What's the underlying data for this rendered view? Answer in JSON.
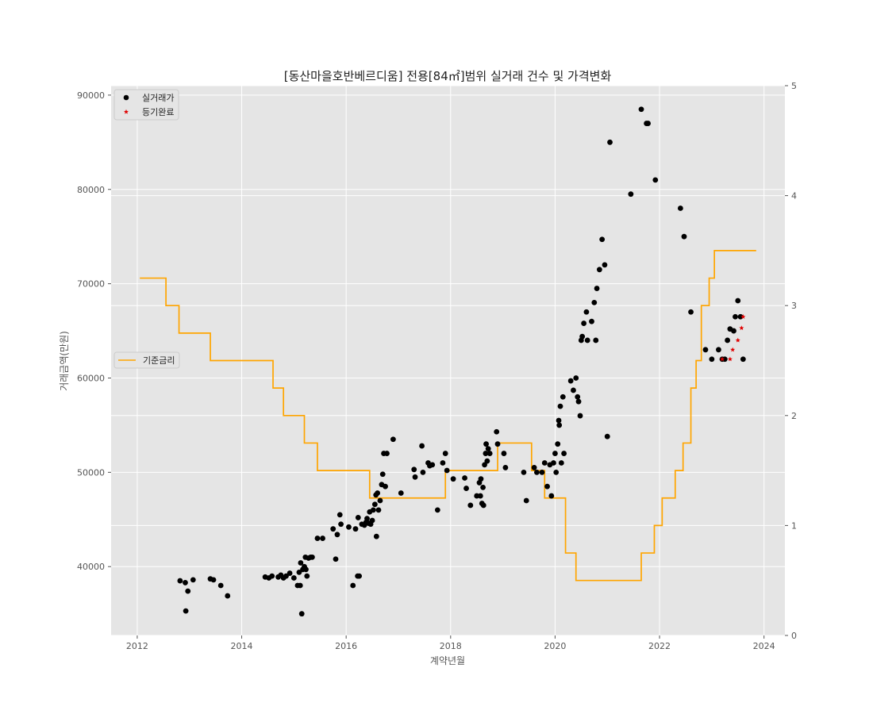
{
  "chart_data": {
    "type": "scatter",
    "title": "[동산마을호반베르디움] 전용[84㎡]범위 실거래 건수 및 가격변화",
    "xlabel": "계약년월",
    "ylabel": "거래금액(만원)",
    "xlim": [
      2011.5,
      2024.4
    ],
    "ylim": [
      32700,
      91000
    ],
    "y2lim": [
      0,
      5
    ],
    "x_ticks": [
      2012,
      2014,
      2016,
      2018,
      2020,
      2022,
      2024
    ],
    "y_ticks": [
      40000,
      50000,
      60000,
      70000,
      80000,
      90000
    ],
    "y2_ticks": [
      0,
      1,
      2,
      3,
      4,
      5
    ],
    "grid": true,
    "legend_placement": [
      "upper-left",
      "center-left"
    ],
    "colors": {
      "background": "#e5e5e5",
      "grid": "#ffffff",
      "trades": "#000000",
      "registered": "#e00000",
      "rate": "#ffa500"
    },
    "series": [
      {
        "name": "실거래가",
        "kind": "scatter",
        "marker": "circle",
        "points": [
          [
            2012.82,
            38500
          ],
          [
            2012.92,
            38300
          ],
          [
            2012.93,
            35300
          ],
          [
            2012.97,
            37400
          ],
          [
            2013.07,
            38600
          ],
          [
            2013.4,
            38700
          ],
          [
            2013.46,
            38600
          ],
          [
            2013.6,
            38000
          ],
          [
            2013.73,
            36900
          ],
          [
            2014.45,
            38900
          ],
          [
            2014.52,
            38800
          ],
          [
            2014.58,
            39000
          ],
          [
            2014.7,
            38900
          ],
          [
            2014.75,
            39100
          ],
          [
            2014.8,
            38800
          ],
          [
            2014.85,
            39000
          ],
          [
            2014.92,
            39300
          ],
          [
            2015.0,
            38800
          ],
          [
            2015.07,
            38000
          ],
          [
            2015.1,
            39400
          ],
          [
            2015.12,
            38000
          ],
          [
            2015.13,
            40400
          ],
          [
            2015.15,
            35000
          ],
          [
            2015.17,
            39700
          ],
          [
            2015.2,
            40000
          ],
          [
            2015.22,
            41000
          ],
          [
            2015.23,
            39700
          ],
          [
            2015.25,
            39000
          ],
          [
            2015.28,
            40900
          ],
          [
            2015.32,
            41000
          ],
          [
            2015.35,
            41000
          ],
          [
            2015.45,
            43000
          ],
          [
            2015.55,
            43000
          ],
          [
            2015.75,
            44000
          ],
          [
            2015.8,
            40800
          ],
          [
            2015.83,
            43400
          ],
          [
            2015.88,
            45500
          ],
          [
            2015.9,
            44500
          ],
          [
            2016.05,
            44200
          ],
          [
            2016.13,
            38000
          ],
          [
            2016.18,
            44000
          ],
          [
            2016.22,
            39000
          ],
          [
            2016.23,
            45200
          ],
          [
            2016.25,
            39000
          ],
          [
            2016.3,
            44500
          ],
          [
            2016.35,
            44400
          ],
          [
            2016.38,
            44700
          ],
          [
            2016.4,
            45100
          ],
          [
            2016.43,
            44600
          ],
          [
            2016.45,
            45800
          ],
          [
            2016.47,
            44500
          ],
          [
            2016.5,
            44900
          ],
          [
            2016.52,
            46000
          ],
          [
            2016.55,
            46600
          ],
          [
            2016.57,
            47600
          ],
          [
            2016.58,
            43200
          ],
          [
            2016.6,
            47800
          ],
          [
            2016.62,
            46000
          ],
          [
            2016.65,
            47000
          ],
          [
            2016.68,
            48700
          ],
          [
            2016.7,
            49800
          ],
          [
            2016.72,
            52000
          ],
          [
            2016.75,
            48500
          ],
          [
            2016.78,
            52000
          ],
          [
            2016.9,
            53500
          ],
          [
            2017.05,
            47800
          ],
          [
            2017.3,
            50300
          ],
          [
            2017.32,
            49500
          ],
          [
            2017.45,
            52800
          ],
          [
            2017.47,
            50000
          ],
          [
            2017.57,
            51000
          ],
          [
            2017.6,
            50700
          ],
          [
            2017.65,
            50800
          ],
          [
            2017.75,
            46000
          ],
          [
            2017.85,
            51000
          ],
          [
            2017.9,
            52000
          ],
          [
            2017.93,
            50200
          ],
          [
            2018.05,
            49300
          ],
          [
            2018.27,
            49400
          ],
          [
            2018.3,
            48300
          ],
          [
            2018.38,
            46500
          ],
          [
            2018.5,
            47500
          ],
          [
            2018.55,
            48900
          ],
          [
            2018.57,
            47500
          ],
          [
            2018.58,
            49300
          ],
          [
            2018.6,
            46700
          ],
          [
            2018.62,
            48400
          ],
          [
            2018.63,
            46500
          ],
          [
            2018.65,
            50800
          ],
          [
            2018.67,
            52000
          ],
          [
            2018.68,
            53000
          ],
          [
            2018.7,
            51200
          ],
          [
            2018.72,
            52500
          ],
          [
            2018.75,
            52000
          ],
          [
            2018.88,
            54300
          ],
          [
            2018.9,
            53000
          ],
          [
            2019.02,
            52000
          ],
          [
            2019.05,
            50500
          ],
          [
            2019.4,
            50000
          ],
          [
            2019.45,
            47000
          ],
          [
            2019.6,
            50500
          ],
          [
            2019.65,
            50000
          ],
          [
            2019.75,
            50000
          ],
          [
            2019.8,
            51000
          ],
          [
            2019.85,
            48500
          ],
          [
            2019.9,
            50800
          ],
          [
            2019.93,
            47500
          ],
          [
            2019.97,
            51000
          ],
          [
            2020.0,
            52000
          ],
          [
            2020.02,
            50000
          ],
          [
            2020.05,
            53000
          ],
          [
            2020.07,
            55500
          ],
          [
            2020.08,
            55000
          ],
          [
            2020.1,
            57000
          ],
          [
            2020.12,
            51000
          ],
          [
            2020.15,
            58000
          ],
          [
            2020.17,
            52000
          ],
          [
            2020.3,
            59700
          ],
          [
            2020.35,
            58700
          ],
          [
            2020.4,
            60000
          ],
          [
            2020.43,
            58000
          ],
          [
            2020.45,
            57500
          ],
          [
            2020.48,
            56000
          ],
          [
            2020.5,
            64000
          ],
          [
            2020.52,
            64400
          ],
          [
            2020.55,
            65800
          ],
          [
            2020.6,
            67000
          ],
          [
            2020.62,
            64000
          ],
          [
            2020.7,
            66000
          ],
          [
            2020.75,
            68000
          ],
          [
            2020.78,
            64000
          ],
          [
            2020.8,
            69500
          ],
          [
            2020.85,
            71500
          ],
          [
            2020.9,
            74700
          ],
          [
            2020.95,
            72000
          ],
          [
            2021.0,
            53800
          ],
          [
            2021.05,
            85000
          ],
          [
            2021.45,
            79500
          ],
          [
            2021.65,
            88500
          ],
          [
            2021.75,
            87000
          ],
          [
            2021.78,
            87000
          ],
          [
            2021.92,
            81000
          ],
          [
            2022.4,
            78000
          ],
          [
            2022.47,
            75000
          ],
          [
            2022.6,
            67000
          ],
          [
            2022.88,
            63000
          ],
          [
            2023.0,
            62000
          ],
          [
            2023.13,
            63000
          ],
          [
            2023.2,
            62000
          ],
          [
            2023.25,
            62000
          ],
          [
            2023.3,
            64000
          ],
          [
            2023.35,
            65200
          ],
          [
            2023.42,
            65000
          ],
          [
            2023.45,
            66500
          ],
          [
            2023.5,
            68200
          ],
          [
            2023.55,
            66500
          ],
          [
            2023.6,
            62000
          ]
        ]
      },
      {
        "name": "등기완료",
        "kind": "scatter",
        "marker": "star",
        "points": [
          [
            2023.2,
            62000
          ],
          [
            2023.35,
            62000
          ],
          [
            2023.4,
            63000
          ],
          [
            2023.5,
            64000
          ],
          [
            2023.57,
            65300
          ],
          [
            2023.6,
            66500
          ]
        ]
      },
      {
        "name": "기준금리",
        "kind": "step",
        "axis": "right",
        "points": [
          [
            2012.05,
            3.25
          ],
          [
            2012.55,
            3.0
          ],
          [
            2012.8,
            2.75
          ],
          [
            2013.4,
            2.5
          ],
          [
            2014.6,
            2.25
          ],
          [
            2014.8,
            2.0
          ],
          [
            2015.2,
            1.75
          ],
          [
            2015.45,
            1.5
          ],
          [
            2016.45,
            1.25
          ],
          [
            2017.9,
            1.5
          ],
          [
            2018.9,
            1.75
          ],
          [
            2019.55,
            1.5
          ],
          [
            2019.8,
            1.25
          ],
          [
            2020.2,
            0.75
          ],
          [
            2020.4,
            0.5
          ],
          [
            2021.65,
            0.75
          ],
          [
            2021.9,
            1.0
          ],
          [
            2022.05,
            1.25
          ],
          [
            2022.3,
            1.5
          ],
          [
            2022.45,
            1.75
          ],
          [
            2022.6,
            2.25
          ],
          [
            2022.7,
            2.5
          ],
          [
            2022.8,
            3.0
          ],
          [
            2022.95,
            3.25
          ],
          [
            2023.05,
            3.5
          ],
          [
            2023.85,
            3.5
          ]
        ]
      }
    ]
  }
}
